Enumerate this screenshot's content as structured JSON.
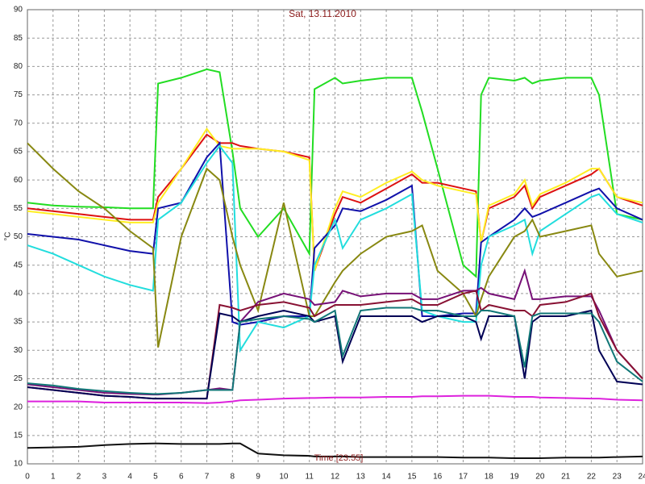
{
  "chart_data": {
    "type": "line",
    "title": "Sat, 13.11.2010",
    "y_label": "°C",
    "x_label": "Time [23:55]",
    "xlim": [
      0,
      24
    ],
    "ylim": [
      10,
      90
    ],
    "xticks": [
      0,
      1,
      2,
      3,
      4,
      5,
      6,
      7,
      8,
      9,
      10,
      11,
      12,
      13,
      14,
      15,
      16,
      17,
      18,
      19,
      20,
      21,
      22,
      23,
      24
    ],
    "yticks": [
      10,
      15,
      20,
      25,
      30,
      35,
      40,
      45,
      50,
      55,
      60,
      65,
      70,
      75,
      80,
      85,
      90
    ],
    "grid": true,
    "x": [
      0,
      1,
      2,
      3,
      4,
      4.9,
      5.1,
      6,
      7,
      7.5,
      8,
      8.3,
      9,
      10,
      11,
      11.2,
      12,
      12.3,
      13,
      14,
      15,
      15.4,
      16,
      17,
      17.5,
      17.7,
      18,
      19,
      19.4,
      19.7,
      20,
      21,
      22,
      22.3,
      23,
      24
    ],
    "series": [
      {
        "color": "#22dd22",
        "values": [
          56,
          55.5,
          55.3,
          55.2,
          55,
          55,
          77,
          78,
          79.5,
          79,
          65,
          55,
          50,
          55,
          47,
          76,
          78,
          77,
          77.5,
          78,
          78,
          72,
          62,
          45,
          43,
          75,
          78,
          77.5,
          78,
          77,
          77.5,
          78,
          78,
          75,
          54,
          53
        ]
      },
      {
        "color": "#dd1111",
        "values": [
          55,
          54.5,
          54,
          53.5,
          53,
          53,
          57,
          62,
          68,
          66.5,
          66.5,
          66,
          65.5,
          65,
          64,
          44,
          54,
          57,
          56,
          58.5,
          61,
          59.5,
          59.5,
          58.5,
          58,
          49,
          55,
          57,
          59,
          55,
          57,
          59,
          61,
          62,
          57,
          55.5
        ]
      },
      {
        "color": "#ffee22",
        "values": [
          54.5,
          54,
          53.5,
          53,
          52.5,
          52.5,
          56,
          62,
          69,
          66,
          65.5,
          65.5,
          65.5,
          65,
          63.5,
          44,
          55,
          58,
          57,
          59.5,
          61.5,
          60,
          59,
          58,
          57.5,
          49,
          55.5,
          57.5,
          60,
          55.5,
          57.5,
          59.5,
          62,
          62,
          57,
          56
        ]
      },
      {
        "color": "#1111aa",
        "values": [
          50.5,
          50,
          49.5,
          48.5,
          47.5,
          47,
          55,
          56,
          64,
          66.5,
          35,
          34.5,
          35,
          36,
          36,
          48,
          52,
          55,
          54.5,
          56.5,
          59,
          36,
          36,
          36.5,
          36.5,
          49,
          50,
          53,
          55,
          53.5,
          54,
          56,
          58,
          58.5,
          55,
          53
        ]
      },
      {
        "color": "#22dddd",
        "values": [
          48.5,
          47,
          45,
          43,
          41.5,
          40.5,
          53,
          56,
          63,
          66,
          63,
          30,
          35,
          34,
          36,
          45,
          53,
          48,
          53,
          55,
          57.5,
          37,
          36,
          35,
          35,
          45,
          50,
          52,
          53,
          47,
          51,
          54,
          57,
          57.5,
          54,
          52.5
        ]
      },
      {
        "color": "#888811",
        "values": [
          66.5,
          62,
          58,
          55,
          51,
          48,
          30.5,
          50,
          62,
          60,
          50,
          45,
          37,
          56,
          36,
          36,
          42,
          44,
          47,
          50,
          51,
          52,
          44,
          40,
          36,
          39,
          43,
          50,
          51,
          53,
          50,
          51,
          52,
          47,
          43,
          44
        ]
      },
      {
        "color": "#dd22dd",
        "values": [
          21,
          21,
          21,
          20.8,
          20.8,
          20.8,
          20.8,
          20.8,
          20.7,
          20.8,
          21,
          21.2,
          21.3,
          21.5,
          21.6,
          21.6,
          21.7,
          21.7,
          21.7,
          21.8,
          21.8,
          21.9,
          21.9,
          22,
          22,
          22,
          22,
          21.8,
          21.8,
          21.8,
          21.7,
          21.6,
          21.5,
          21.5,
          21.3,
          21.2
        ]
      },
      {
        "color": "#111111",
        "values": [
          12.8,
          12.9,
          13,
          13.3,
          13.5,
          13.6,
          13.6,
          13.5,
          13.5,
          13.5,
          13.6,
          13.6,
          11.8,
          11.5,
          11.4,
          11.3,
          11.3,
          11.3,
          11.2,
          11.2,
          11.2,
          11.2,
          11.2,
          11.1,
          11.1,
          11.1,
          11.1,
          11,
          11,
          11,
          11,
          11.1,
          11.1,
          11.1,
          11.2,
          11.3
        ]
      },
      {
        "color": "#771177",
        "values": [
          24,
          23.5,
          23,
          22.5,
          22.3,
          22.2,
          22.2,
          22.5,
          23,
          23.3,
          23,
          35,
          38.5,
          40,
          39,
          38,
          38.5,
          40.5,
          39.5,
          40,
          40,
          39,
          39,
          40.5,
          40.5,
          41,
          40,
          39,
          44,
          39,
          39,
          39.5,
          39.5,
          37,
          30,
          25
        ]
      },
      {
        "color": "#881133",
        "values": [
          23.5,
          23,
          22.5,
          22,
          21.8,
          21.5,
          21.5,
          21.5,
          21.5,
          38,
          37.5,
          37,
          38,
          38.5,
          37.5,
          36,
          38,
          38,
          38,
          38.5,
          39,
          38,
          38,
          40,
          40.5,
          37,
          38,
          37,
          37,
          36,
          38,
          38.5,
          40,
          36,
          30,
          25
        ]
      },
      {
        "color": "#000055",
        "values": [
          23.5,
          23,
          22.5,
          22,
          21.8,
          21.5,
          21.5,
          21.5,
          21.5,
          36.5,
          36,
          35,
          36,
          37,
          36,
          35,
          36,
          28,
          36,
          36,
          36,
          35,
          36,
          36,
          35,
          32,
          36,
          36,
          25,
          35,
          36,
          36,
          37,
          30,
          24.5,
          24
        ]
      },
      {
        "color": "#117777",
        "values": [
          24.2,
          23.8,
          23.2,
          22.8,
          22.5,
          22.3,
          22.3,
          22.5,
          23,
          23,
          23,
          35,
          35.5,
          36,
          35.5,
          35,
          37,
          29,
          37,
          37.5,
          37.5,
          37,
          37,
          36,
          36,
          37,
          37,
          36,
          27,
          36,
          36.5,
          36.5,
          36.5,
          35,
          28,
          24.5
        ]
      }
    ]
  }
}
